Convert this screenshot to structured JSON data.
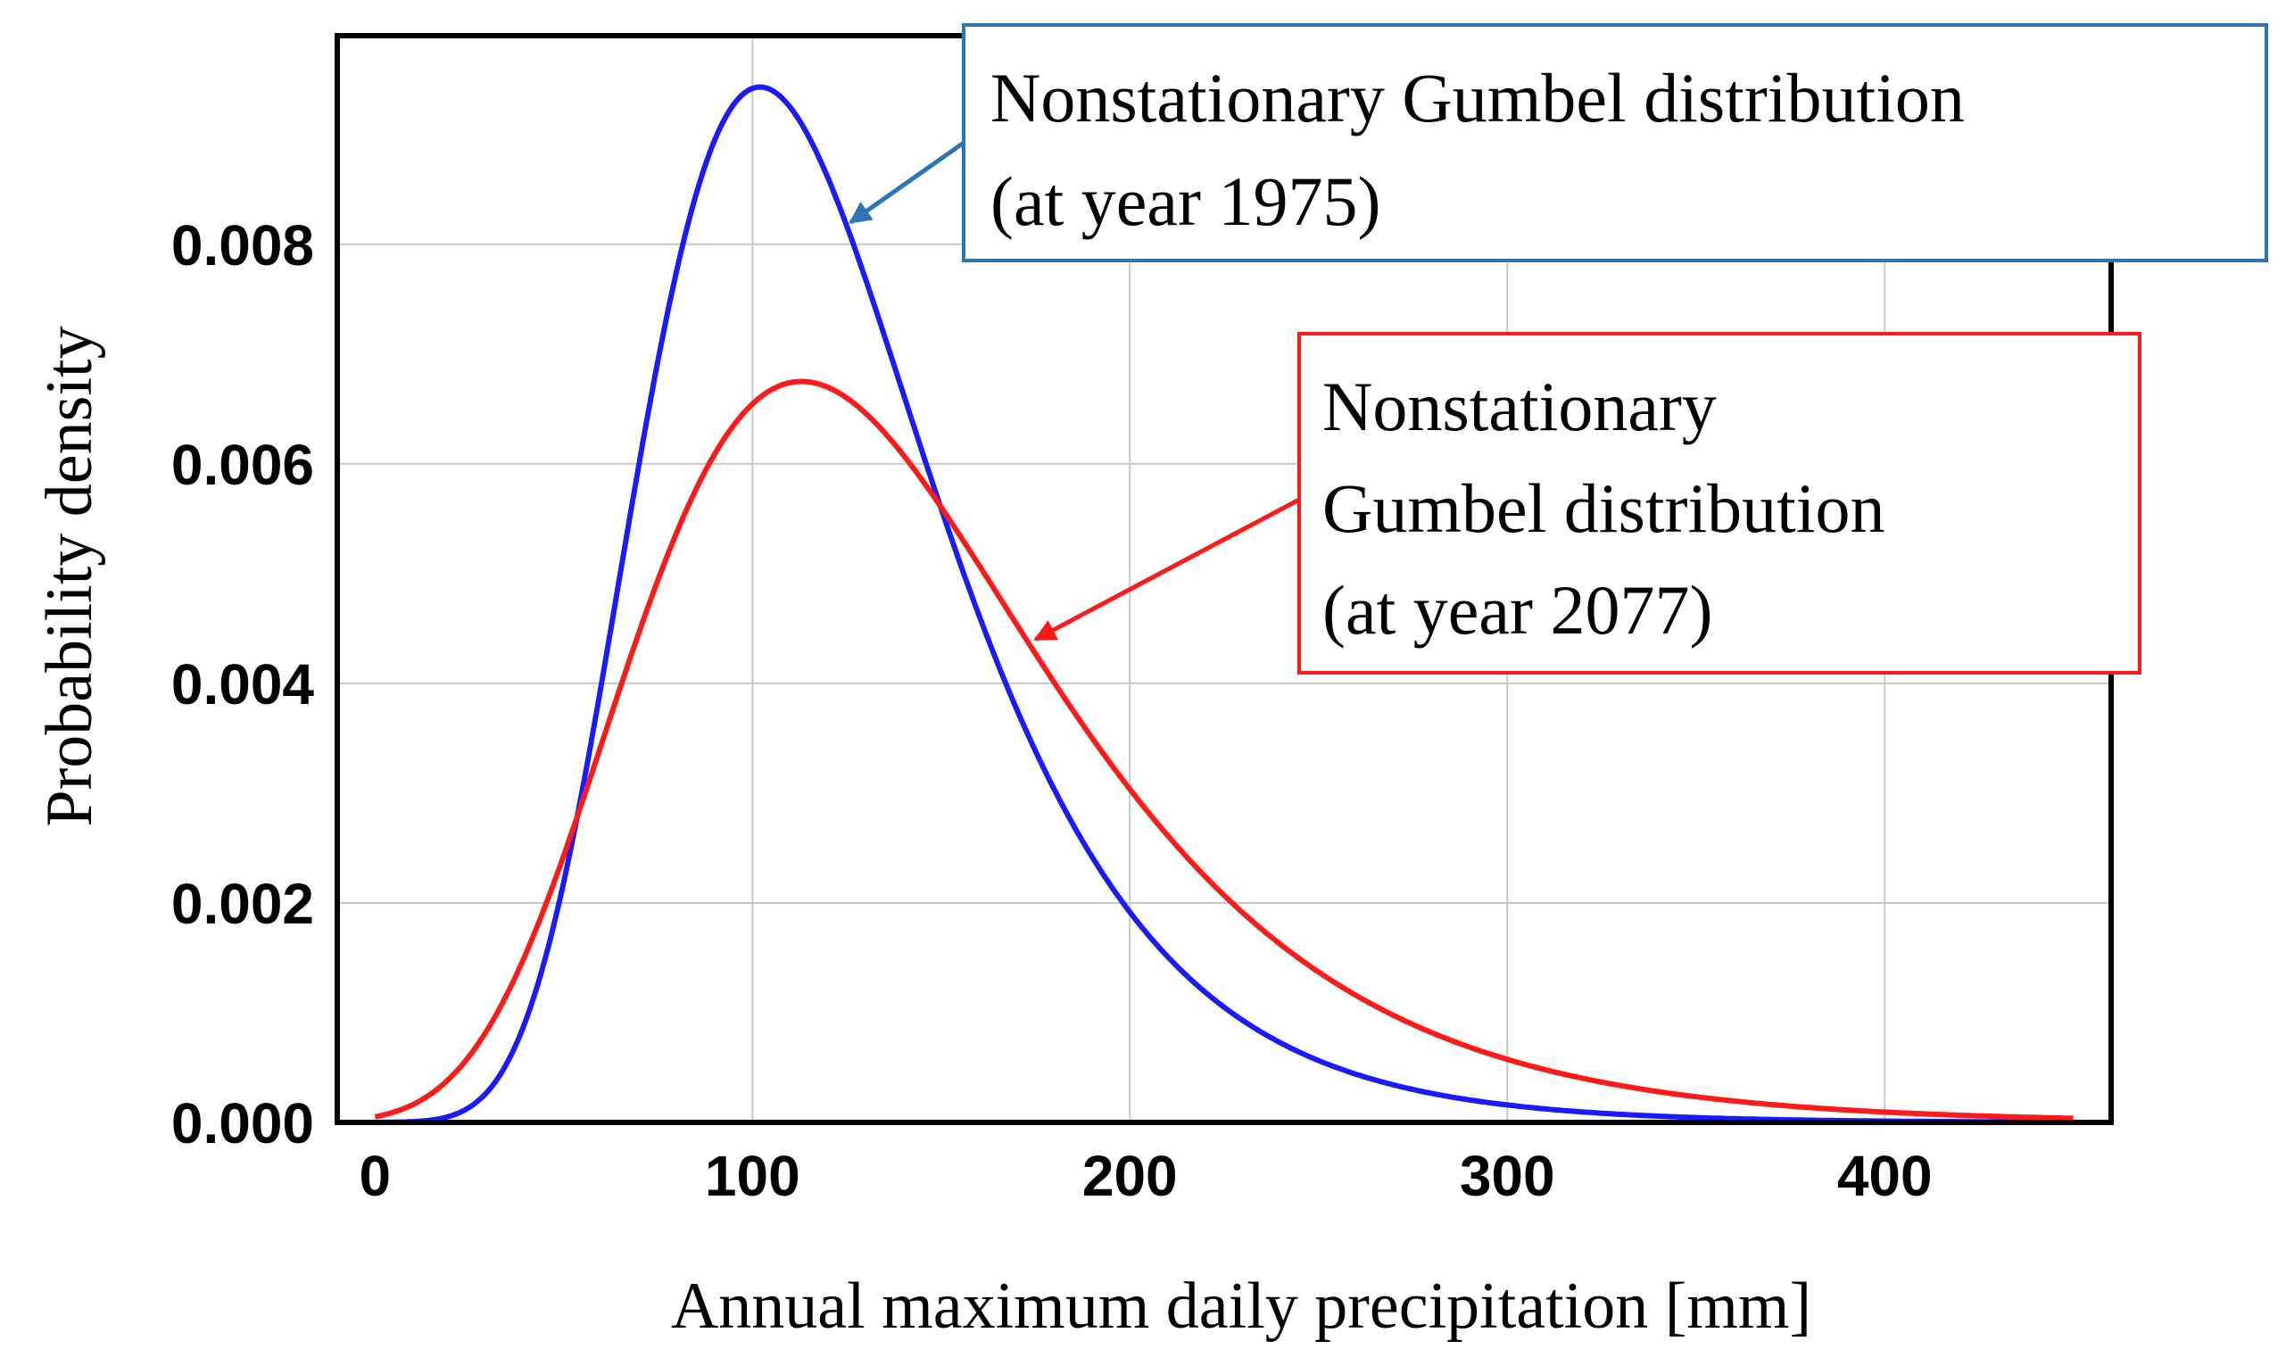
{
  "chart_data": {
    "type": "line",
    "title": "",
    "xlabel": "Annual maximum daily precipitation [mm]",
    "ylabel": "Probability density",
    "xlim": [
      -10,
      460
    ],
    "ylim": [
      0,
      0.0099
    ],
    "x_ticks": [
      0,
      100,
      200,
      300,
      400
    ],
    "x_tick_labels": [
      "0",
      "100",
      "200",
      "300",
      "400"
    ],
    "y_ticks": [
      0,
      0.002,
      0.004,
      0.006,
      0.008
    ],
    "y_tick_labels": [
      "0.000",
      "0.002",
      "0.004",
      "0.006",
      "0.008"
    ],
    "grid": true,
    "x_range_plotted": [
      0,
      450
    ],
    "series": [
      {
        "name": "Nonstationary Gumbel distribution (at year 1975)",
        "color": "#1a1aff",
        "distribution": "gumbel",
        "location": 102,
        "scale": 39,
        "peak": {
          "x": 102,
          "y": 0.0094
        }
      },
      {
        "name": "Nonstationary Gumbel distribution (at year 2077)",
        "color": "#ff1a1a",
        "distribution": "gumbel",
        "location": 113,
        "scale": 54.5,
        "peak": {
          "x": 113,
          "y": 0.00675
        }
      }
    ],
    "annotations": [
      {
        "lines": [
          "Nonstationary Gumbel distribution",
          "(at year 1975)"
        ],
        "border_color": "#2e75b6",
        "arrow_color": "#2e75b6",
        "points_to": {
          "x": 126,
          "y": 0.0082
        }
      },
      {
        "lines": [
          "Nonstationary",
          "Gumbel distribution",
          "(at year 2077)"
        ],
        "border_color": "#ff1a1a",
        "arrow_color": "#ff1a1a",
        "points_to": {
          "x": 175,
          "y": 0.0044
        }
      }
    ]
  }
}
